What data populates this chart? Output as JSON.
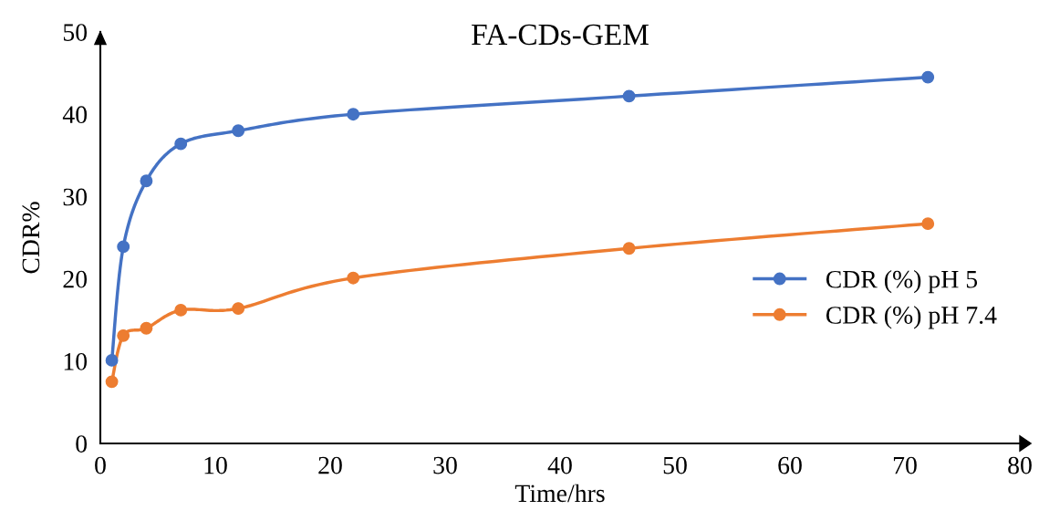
{
  "chart_data": {
    "type": "line",
    "title": "FA-CDs-GEM",
    "xlabel": "Time/hrs",
    "ylabel": "CDR%",
    "x": [
      1,
      2,
      4,
      7,
      12,
      22,
      46,
      72
    ],
    "series": [
      {
        "name": "CDR (%) pH 5",
        "color": "#4472c4",
        "values": [
          10.1,
          23.9,
          31.9,
          36.4,
          38.0,
          40.0,
          42.2,
          44.5
        ]
      },
      {
        "name": "CDR (%) pH 7.4",
        "color": "#ed7d31",
        "values": [
          7.5,
          13.1,
          14.0,
          16.2,
          16.4,
          20.1,
          23.7,
          26.7
        ]
      }
    ],
    "xlim": [
      0,
      80
    ],
    "ylim": [
      0,
      50
    ],
    "xticks": [
      0,
      10,
      20,
      30,
      40,
      50,
      60,
      70,
      80
    ],
    "yticks": [
      0,
      10,
      20,
      30,
      40,
      50
    ],
    "grid": false,
    "legend": "right",
    "marker": "circle",
    "line_style": "solid"
  }
}
